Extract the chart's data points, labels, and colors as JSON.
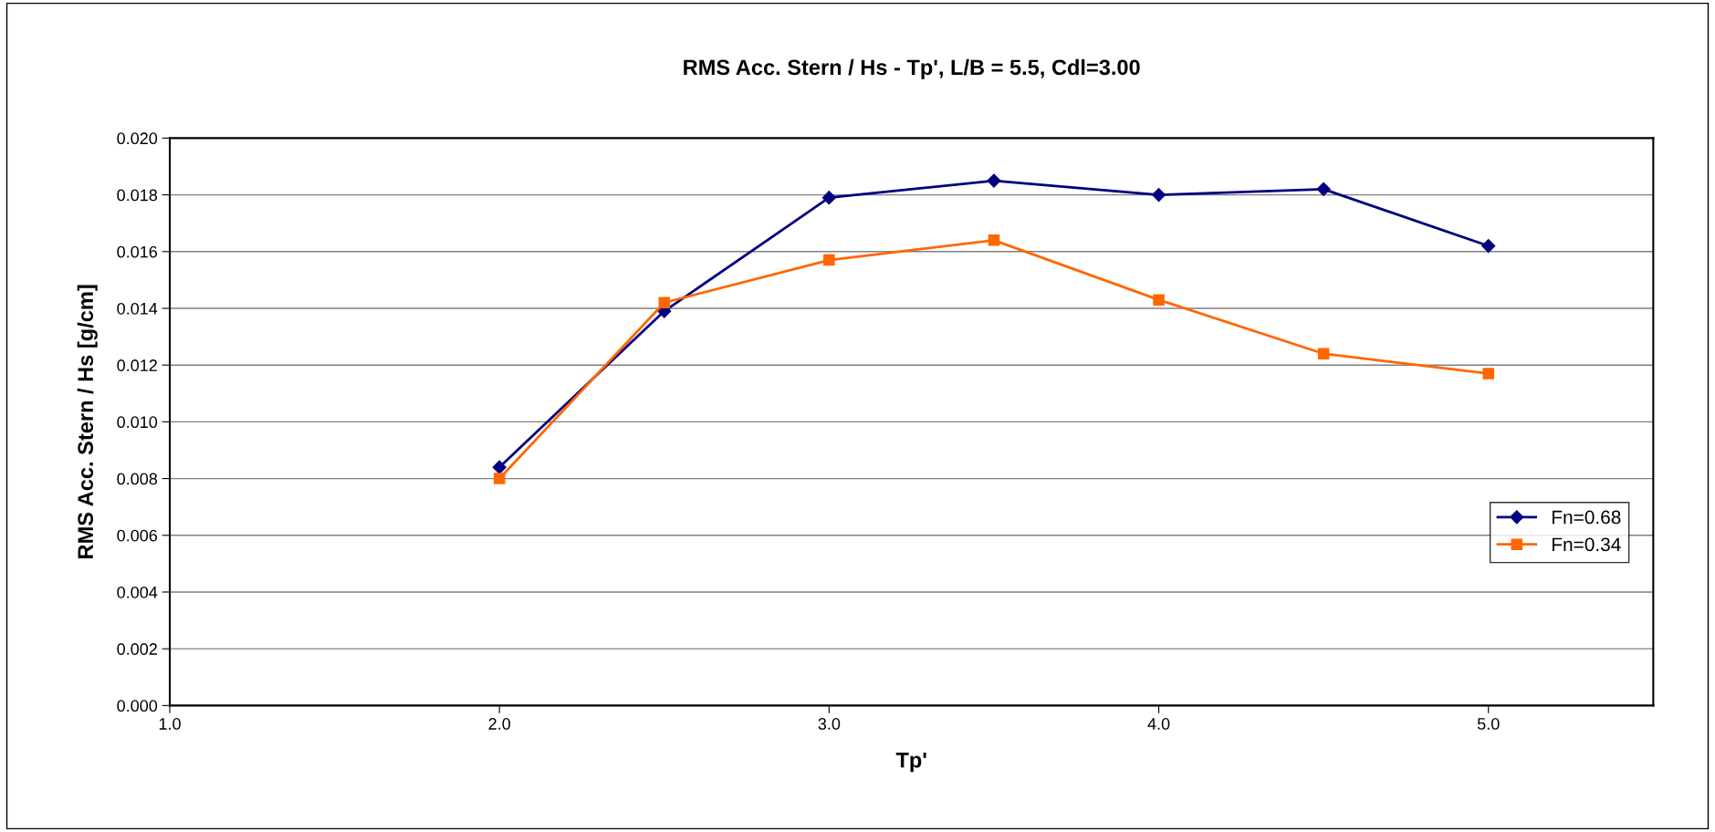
{
  "chart_data": {
    "type": "line",
    "title": "RMS Acc. Stern / Hs - Tp', L/B = 5.5, Cdl=3.00",
    "xlabel": "Tp'",
    "ylabel": "RMS Acc. Stern / Hs [g/cm]",
    "x": [
      2.0,
      2.5,
      3.0,
      3.5,
      4.0,
      4.5,
      5.0
    ],
    "series": [
      {
        "name": "Fn=0.68",
        "color": "#000080",
        "marker": "diamond",
        "values": [
          0.0084,
          0.0139,
          0.0179,
          0.0185,
          0.018,
          0.0182,
          0.0162
        ]
      },
      {
        "name": "Fn=0.34",
        "color": "#ff6600",
        "marker": "square",
        "values": [
          0.008,
          0.0142,
          0.0157,
          0.0164,
          0.0143,
          0.0124,
          0.0117
        ]
      }
    ],
    "xlim": [
      1.0,
      5.5
    ],
    "xticks": [
      {
        "value": 1.0,
        "label": "1.0"
      },
      {
        "value": 2.0,
        "label": "2.0"
      },
      {
        "value": 3.0,
        "label": "3.0"
      },
      {
        "value": 4.0,
        "label": "4.0"
      },
      {
        "value": 5.0,
        "label": "5.0"
      }
    ],
    "ylim": [
      0.0,
      0.02
    ],
    "yticks": [
      {
        "value": 0.0,
        "label": "0.000"
      },
      {
        "value": 0.002,
        "label": "0.002"
      },
      {
        "value": 0.004,
        "label": "0.004"
      },
      {
        "value": 0.006,
        "label": "0.006"
      },
      {
        "value": 0.008,
        "label": "0.008"
      },
      {
        "value": 0.01,
        "label": "0.010"
      },
      {
        "value": 0.012,
        "label": "0.012"
      },
      {
        "value": 0.014,
        "label": "0.014"
      },
      {
        "value": 0.016,
        "label": "0.016"
      },
      {
        "value": 0.018,
        "label": "0.018"
      },
      {
        "value": 0.02,
        "label": "0.020"
      }
    ],
    "grid": "y",
    "legend": "right",
    "line_style": "solid"
  }
}
